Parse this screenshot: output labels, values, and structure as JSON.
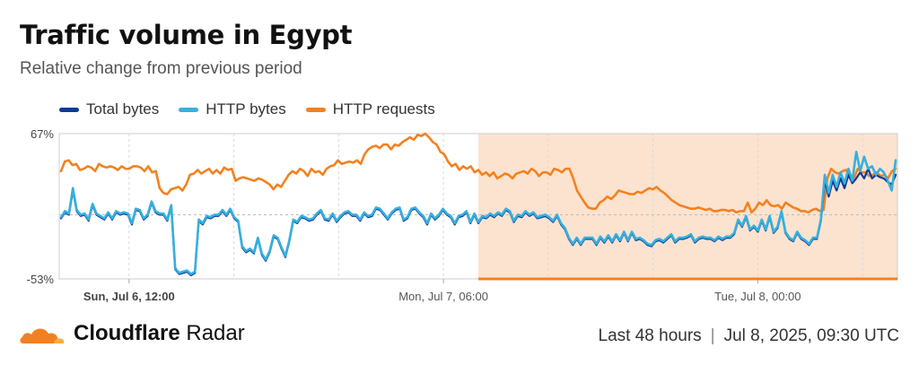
{
  "header": {
    "title": "Traffic volume in Egypt",
    "subtitle": "Relative change from previous period"
  },
  "legend": [
    {
      "label": "Total bytes",
      "color": "#0b3a9a"
    },
    {
      "label": "HTTP bytes",
      "color": "#36b0dd"
    },
    {
      "label": "HTTP requests",
      "color": "#f4811f"
    }
  ],
  "footer": {
    "brand_bold": "Cloudflare",
    "brand_rest": " Radar",
    "range": "Last 48 hours",
    "separator": "|",
    "timestamp": "Jul 8, 2025, 09:30 UTC"
  },
  "colors": {
    "total_bytes": "#0b3a9a",
    "http_bytes": "#36b0dd",
    "http_requests": "#f4811f",
    "highlight_fill": "#fbe3d0",
    "grid": "#d9d9d9",
    "brand_orange": "#f38020",
    "brand_light": "#fbad41"
  },
  "icons": {
    "logo": "cloudflare-cloud-icon"
  },
  "chart_data": {
    "type": "line",
    "title": "Traffic volume in Egypt",
    "subtitle": "Relative change from previous period",
    "y_tick_labels": [
      "67%",
      "-53%"
    ],
    "ylim": [
      -53,
      67
    ],
    "x_tick_labels": [
      "Sun, Jul 6, 12:00",
      "Mon, Jul 7, 06:00",
      "Tue, Jul 8, 00:00"
    ],
    "x_tick_positions": [
      4,
      22,
      40
    ],
    "x_range_hours": [
      0,
      48
    ],
    "grid": "vertical dashed every 6 hours, horizontal dashed at 0%",
    "legend_position": "top-left",
    "highlight_range_hours": [
      24,
      48
    ],
    "series": [
      {
        "name": "Total bytes",
        "values": [
          -3,
          2,
          0,
          20,
          3,
          -1,
          0,
          -5,
          8,
          0,
          -2,
          -4,
          1,
          -4,
          2,
          0,
          1,
          0,
          -8,
          4,
          3,
          -4,
          -1,
          10,
          2,
          0,
          0,
          -5,
          7,
          -45,
          -49,
          -48,
          -47,
          -50,
          -48,
          -5,
          -8,
          -2,
          -3,
          -1,
          -1,
          3,
          -1,
          4,
          -3,
          -6,
          -27,
          -31,
          -29,
          -32,
          -20,
          -33,
          -38,
          -31,
          -18,
          -20,
          -28,
          -35,
          -22,
          -5,
          -7,
          -2,
          -3,
          -5,
          -4,
          0,
          3,
          -4,
          -5,
          0,
          -6,
          -2,
          1,
          2,
          -1,
          -1,
          -5,
          1,
          -2,
          -1,
          5,
          4,
          0,
          -4,
          1,
          4,
          5,
          -5,
          -3,
          4,
          5,
          1,
          -2,
          -8,
          0,
          -4,
          -1,
          4,
          0,
          -2,
          -8,
          -2,
          -1,
          2,
          -7,
          0,
          -7,
          -2,
          -3,
          0,
          -2,
          1,
          -1,
          4,
          2,
          -6,
          -1,
          -2,
          2,
          -1,
          1,
          -3,
          -2,
          -1,
          -3,
          -6,
          -1,
          -8,
          -12,
          -20,
          -25,
          -20,
          -25,
          -20,
          -20,
          -20,
          -25,
          -19,
          -23,
          -18,
          -23,
          -17,
          -22,
          -15,
          -22,
          -15,
          -21,
          -20,
          -22,
          -25,
          -26,
          -22,
          -21,
          -23,
          -20,
          -17,
          -23,
          -20,
          -20,
          -19,
          -17,
          -23,
          -20,
          -19,
          -20,
          -20,
          -22,
          -19,
          -21,
          -19,
          -19,
          -16,
          -5,
          -10,
          -2,
          -13,
          -10,
          -14,
          -5,
          -13,
          -2,
          -15,
          -11,
          2,
          -15,
          -20,
          -22,
          -15,
          -20,
          -22,
          -25,
          -20,
          -20,
          -5,
          28,
          15,
          28,
          20,
          30,
          22,
          33,
          26,
          30,
          35,
          30,
          38,
          30,
          33,
          31,
          30,
          27,
          25,
          33
        ],
        "color": "#0b3a9a"
      },
      {
        "name": "HTTP bytes",
        "values": [
          -2,
          3,
          1,
          22,
          4,
          0,
          1,
          -4,
          9,
          1,
          -1,
          -3,
          2,
          -3,
          3,
          1,
          2,
          1,
          -7,
          5,
          4,
          -3,
          0,
          11,
          3,
          1,
          1,
          -4,
          8,
          -44,
          -48,
          -47,
          -46,
          -49,
          -47,
          -4,
          -7,
          -1,
          -2,
          0,
          0,
          4,
          0,
          5,
          -2,
          -5,
          -26,
          -30,
          -28,
          -31,
          -19,
          -32,
          -37,
          -30,
          -17,
          -19,
          -27,
          -34,
          -21,
          -4,
          -6,
          -1,
          -2,
          -4,
          -3,
          1,
          4,
          -3,
          -4,
          1,
          -5,
          -1,
          2,
          3,
          0,
          0,
          -4,
          2,
          -1,
          0,
          6,
          5,
          1,
          -3,
          2,
          5,
          6,
          -4,
          -2,
          5,
          6,
          2,
          -1,
          -7,
          1,
          -3,
          0,
          5,
          1,
          -1,
          -7,
          -1,
          0,
          3,
          -6,
          1,
          -6,
          -1,
          -2,
          1,
          -1,
          2,
          0,
          5,
          3,
          -5,
          0,
          -1,
          3,
          0,
          2,
          -2,
          -1,
          0,
          -2,
          -5,
          0,
          -7,
          -11,
          -19,
          -24,
          -19,
          -24,
          -19,
          -19,
          -19,
          -24,
          -18,
          -22,
          -17,
          -22,
          -16,
          -21,
          -14,
          -21,
          -14,
          -20,
          -19,
          -21,
          -24,
          -25,
          -21,
          -20,
          -22,
          -19,
          -16,
          -22,
          -19,
          -19,
          -18,
          -16,
          -22,
          -19,
          -18,
          -19,
          -19,
          -21,
          -18,
          -20,
          -18,
          -18,
          -15,
          -4,
          -9,
          -1,
          -12,
          -9,
          -13,
          -4,
          -12,
          -1,
          -14,
          -10,
          3,
          -14,
          -19,
          -21,
          -14,
          -19,
          -21,
          -24,
          -19,
          -19,
          -4,
          33,
          18,
          33,
          23,
          35,
          26,
          38,
          28,
          52,
          36,
          48,
          38,
          40,
          33,
          38,
          35,
          28,
          20,
          45
        ],
        "color": "#36b0dd"
      },
      {
        "name": "HTTP requests",
        "values": [
          36,
          44,
          45,
          41,
          42,
          37,
          38,
          40,
          39,
          36,
          42,
          40,
          39,
          40,
          39,
          37,
          40,
          38,
          38,
          40,
          40,
          39,
          36,
          40,
          35,
          36,
          22,
          18,
          17,
          21,
          22,
          23,
          20,
          25,
          33,
          34,
          37,
          34,
          36,
          38,
          34,
          37,
          34,
          39,
          37,
          38,
          28,
          30,
          31,
          30,
          29,
          28,
          30,
          29,
          27,
          25,
          21,
          25,
          23,
          28,
          33,
          36,
          34,
          38,
          36,
          32,
          38,
          35,
          36,
          33,
          38,
          40,
          41,
          45,
          42,
          43,
          44,
          43,
          45,
          42,
          50,
          54,
          56,
          57,
          55,
          58,
          58,
          54,
          58,
          57,
          60,
          62,
          64,
          62,
          66,
          65,
          67,
          64,
          60,
          58,
          52,
          50,
          44,
          40,
          42,
          37,
          40,
          38,
          40,
          35,
          37,
          33,
          35,
          32,
          35,
          30,
          32,
          34,
          33,
          30,
          34,
          35,
          36,
          34,
          38,
          36,
          32,
          35,
          35,
          33,
          38,
          37,
          35,
          38,
          38,
          30,
          20,
          15,
          10,
          6,
          5,
          5,
          10,
          12,
          15,
          13,
          16,
          20,
          19,
          18,
          17,
          17,
          19,
          18,
          20,
          22,
          21,
          23,
          20,
          18,
          15,
          12,
          10,
          8,
          7,
          6,
          5,
          5,
          6,
          5,
          4,
          5,
          3,
          3,
          4,
          4,
          3,
          4,
          2,
          3,
          3,
          10,
          2,
          5,
          10,
          8,
          12,
          8,
          7,
          8,
          5,
          10,
          8,
          6,
          5,
          3,
          3,
          2,
          4,
          5,
          3,
          4,
          30,
          38,
          35,
          34,
          36,
          37,
          30,
          30,
          38,
          35,
          35,
          32,
          33,
          35,
          32,
          33,
          30,
          36,
          38
        ],
        "color": "#f4811f"
      }
    ]
  }
}
